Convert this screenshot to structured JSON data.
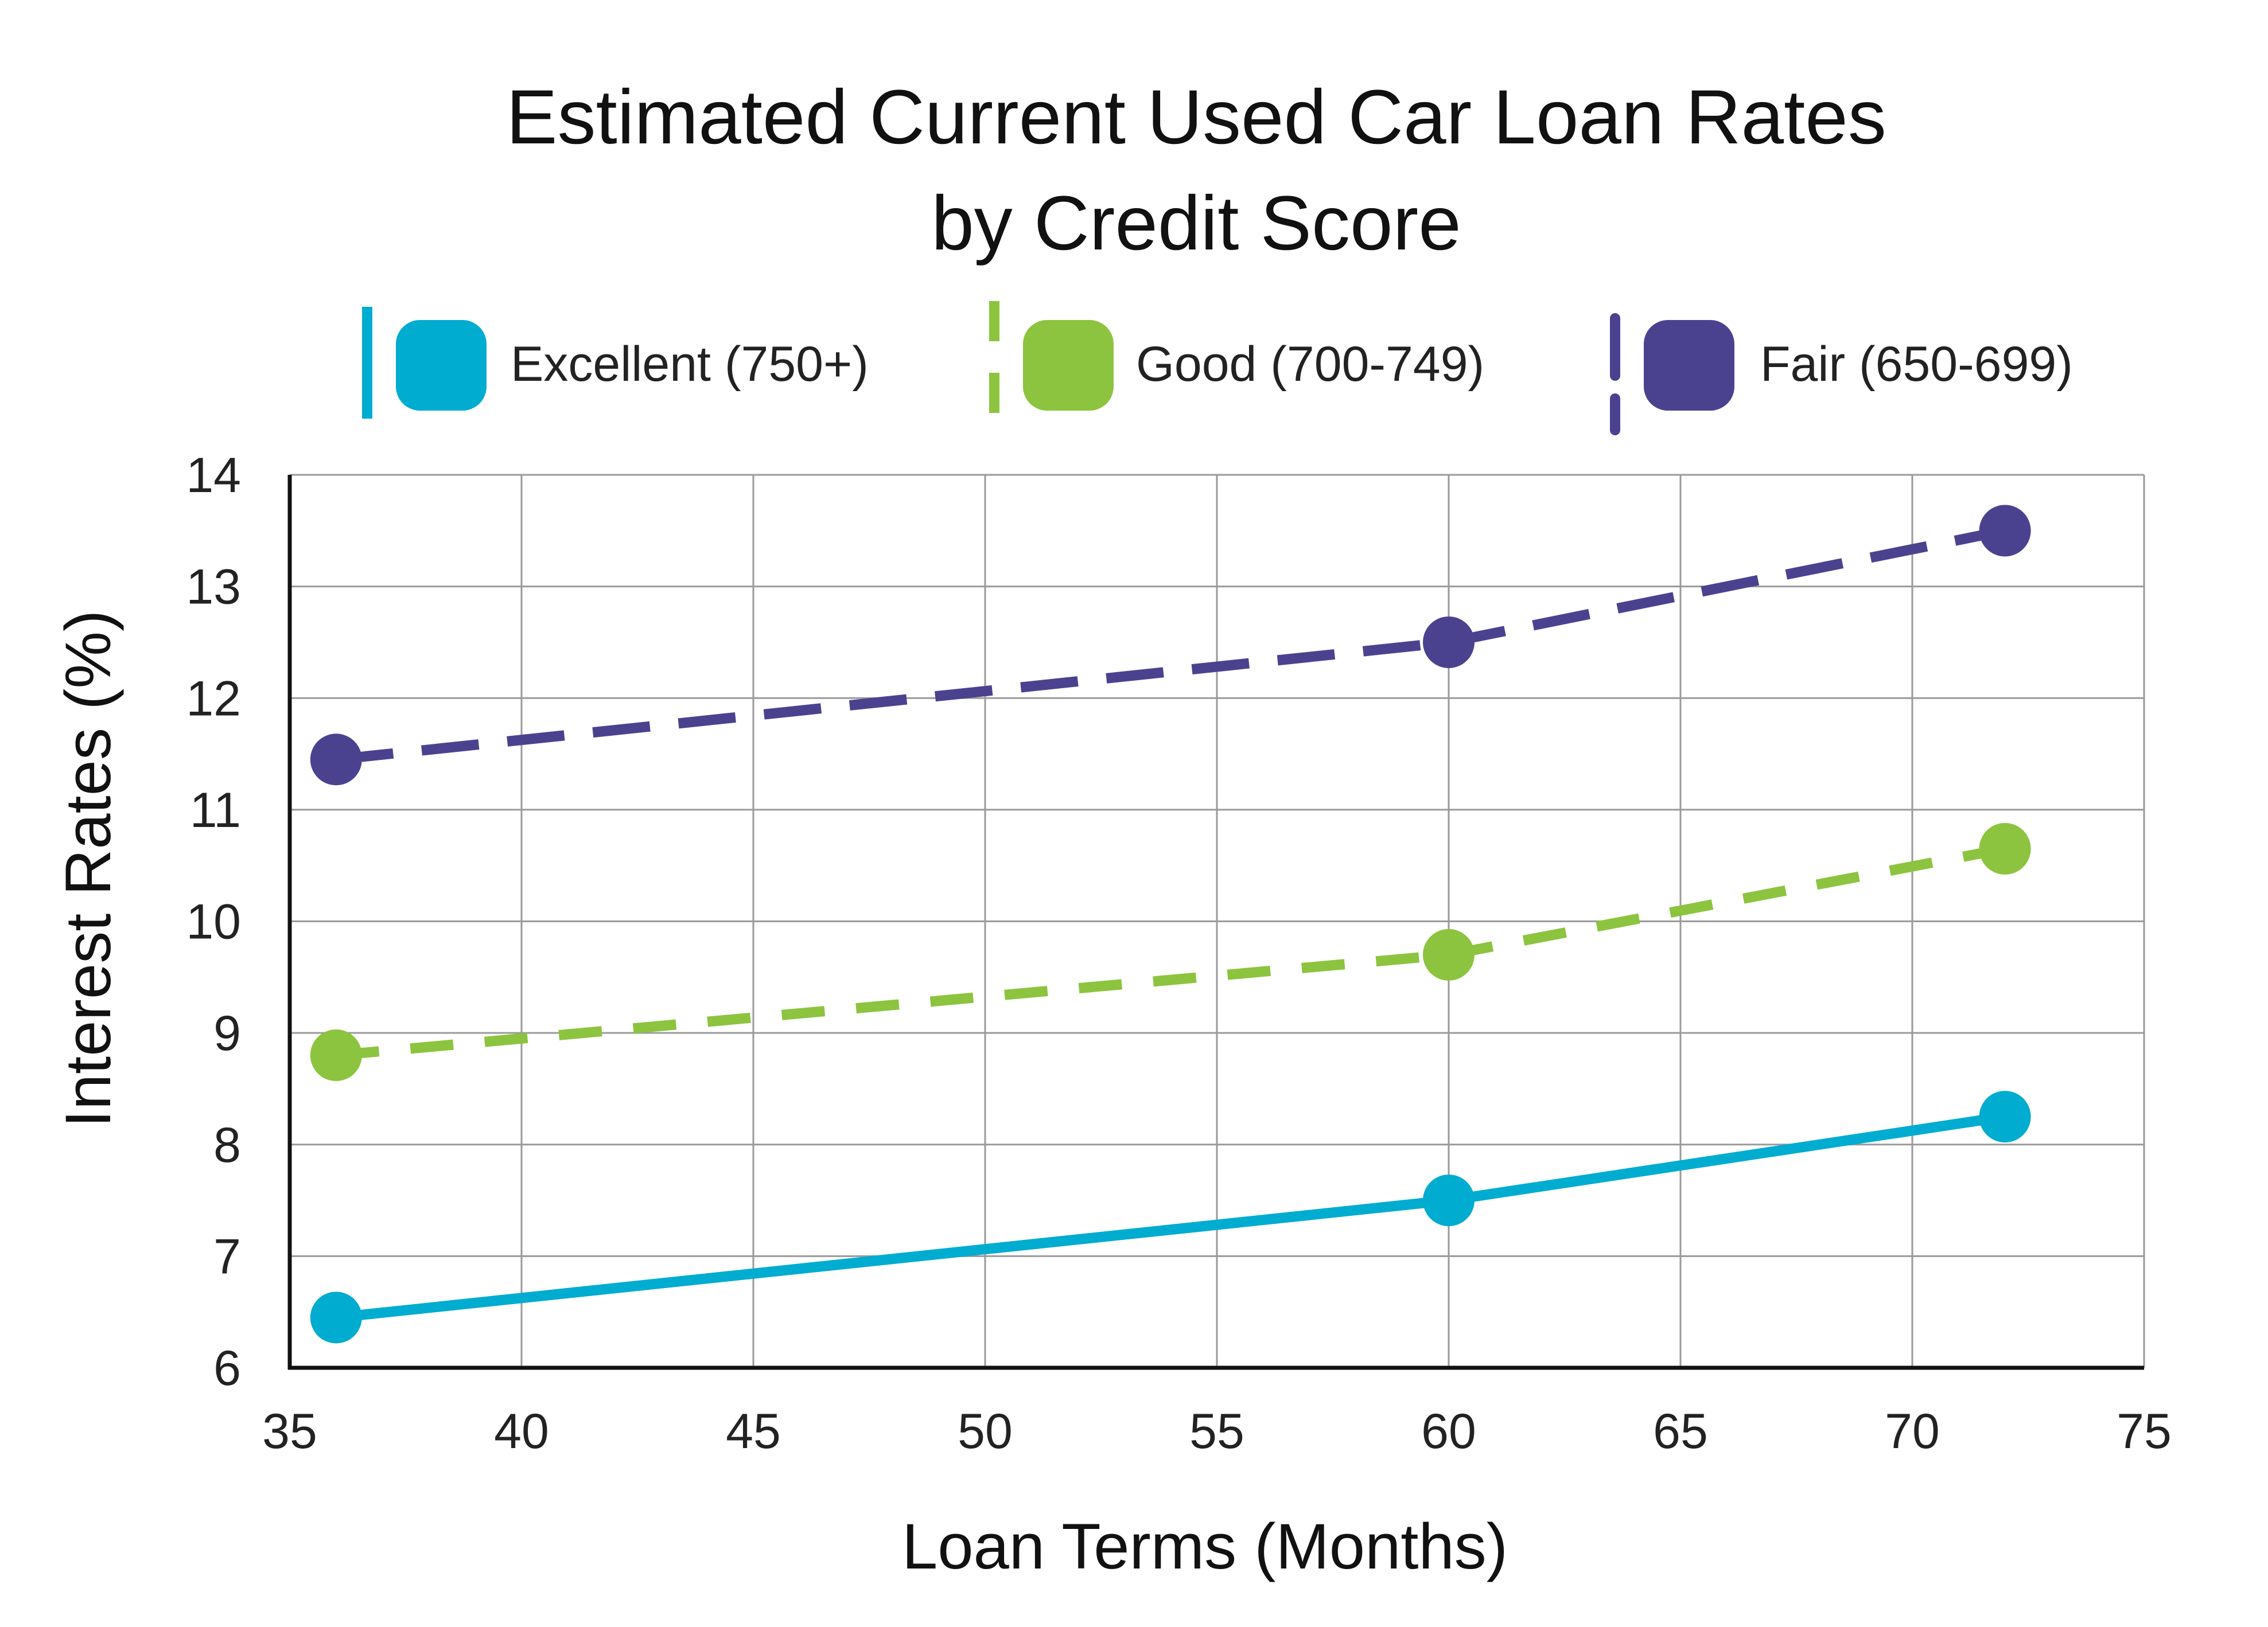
{
  "chart_data": {
    "type": "line",
    "title_lines": [
      "Estimated Current Used Car Loan Rates",
      "by Credit Score"
    ],
    "xlabel": "Loan Terms (Months)",
    "ylabel": "Interest Rates (%)",
    "xlim": [
      35,
      75
    ],
    "ylim": [
      6,
      14
    ],
    "xticks": [
      "35",
      "40",
      "45",
      "50",
      "55",
      "60",
      "65",
      "70",
      "75"
    ],
    "yticks": [
      "6",
      "7",
      "8",
      "9",
      "10",
      "11",
      "12",
      "13",
      "14"
    ],
    "grid": true,
    "legend_position": "top",
    "series": [
      {
        "name": "Excellent (750+)",
        "color": "#00acd0",
        "line_style": "solid",
        "x": [
          36,
          60,
          72
        ],
        "values": [
          6.45,
          7.5,
          8.25
        ]
      },
      {
        "name": "Good (700-749)",
        "color": "#8cc43f",
        "line_style": "dashed",
        "x": [
          36,
          60,
          72
        ],
        "values": [
          8.8,
          9.7,
          10.65
        ]
      },
      {
        "name": "Fair (650-699)",
        "color": "#4b428f",
        "line_style": "long-dashed",
        "x": [
          36,
          60,
          72
        ],
        "values": [
          11.45,
          12.5,
          13.5
        ]
      }
    ]
  }
}
